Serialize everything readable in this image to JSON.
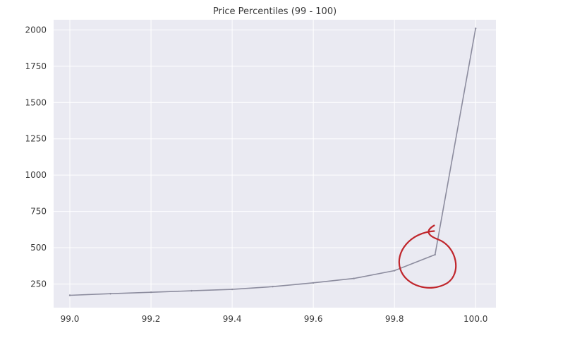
{
  "chart_data": {
    "type": "line",
    "title": "Price Percentiles (99 - 100)",
    "xlabel": "",
    "ylabel": "",
    "x": [
      99.0,
      99.1,
      99.2,
      99.3,
      99.4,
      99.5,
      99.6,
      99.7,
      99.8,
      99.9,
      100.0
    ],
    "series": [
      {
        "values": [
          172,
          183,
          193,
          203,
          213,
          232,
          258,
          288,
          342,
          452,
          2010
        ]
      }
    ],
    "xticks": [
      "99.0",
      "99.2",
      "99.4",
      "99.6",
      "99.8",
      "100.0"
    ],
    "yticks": [
      "250",
      "500",
      "750",
      "1000",
      "1250",
      "1500",
      "1750",
      "2000"
    ],
    "xlim": [
      98.96,
      100.05
    ],
    "ylim": [
      87,
      2070
    ],
    "grid": true,
    "colors": {
      "background": "#eaeaf2",
      "grid": "#ffffff",
      "line": "#8c8c9e",
      "annotation": "#c0262c"
    },
    "annotation": {
      "shape": "hand-drawn-circle",
      "near_x": 99.87,
      "near_y": 420
    }
  }
}
